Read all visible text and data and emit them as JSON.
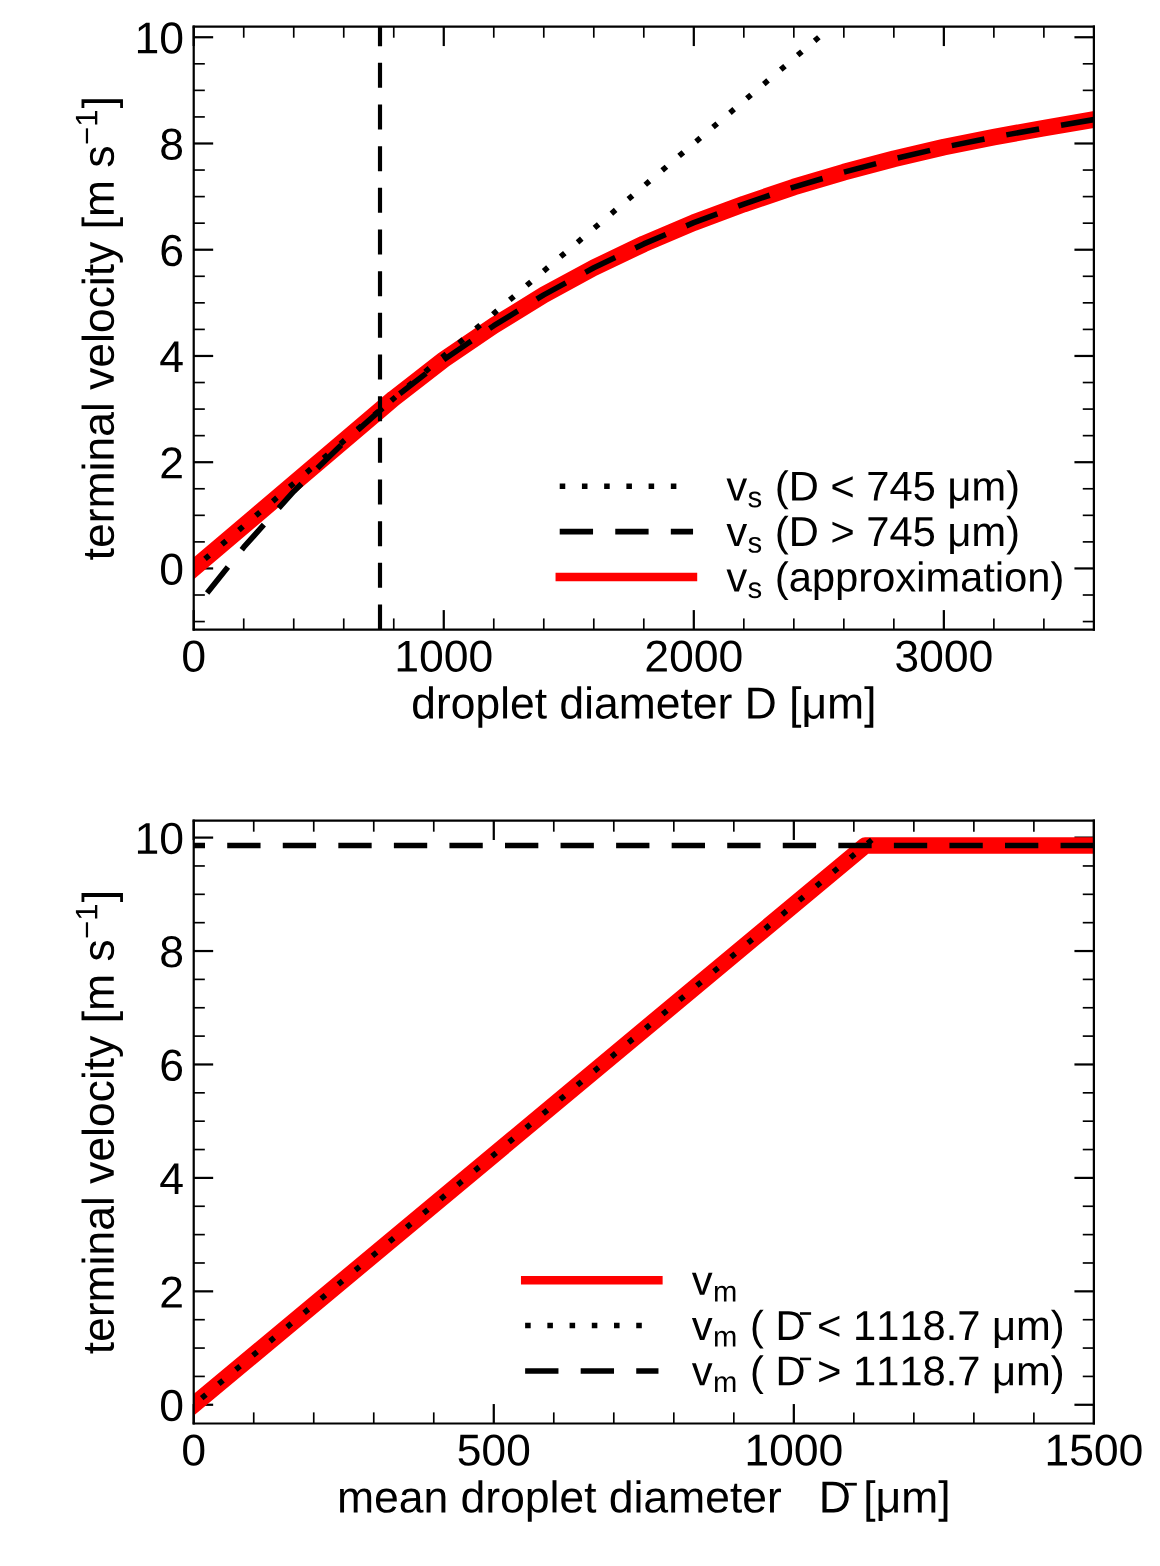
{
  "chart_data": [
    {
      "type": "line",
      "xlabel": "droplet diameter D [μm]",
      "ylabel": "terminal velocity [m s$^{−1}$]",
      "xlim": [
        0,
        3600
      ],
      "xticks": [
        0,
        1000,
        2000,
        3000
      ],
      "ylim": [
        -1.15,
        10.2
      ],
      "yticks": [
        0,
        2,
        4,
        6,
        8,
        10
      ],
      "grid": false,
      "legend": "bottom right",
      "ref_lines": [
        {
          "axis": "x",
          "value": 745,
          "color": "#000000",
          "line_style": "dashed"
        }
      ],
      "series": [
        {
          "name": "v$_{s}$ (D < 745 μm)",
          "color": "#000000",
          "line_style": "dotted",
          "x": [
            0,
            2500
          ],
          "values": [
            0,
            10
          ]
        },
        {
          "name": "v$_{s}$ (D > 745 μm)",
          "color": "#000000",
          "line_style": "dashed",
          "x": [
            0,
            200,
            400,
            600,
            800,
            1000,
            1200,
            1400,
            1600,
            1800,
            2000,
            2200,
            2400,
            2600,
            2800,
            3000,
            3200,
            3400,
            3600
          ],
          "values": [
            -0.78,
            0.4,
            1.45,
            2.37,
            3.2,
            3.93,
            4.57,
            5.15,
            5.66,
            6.11,
            6.51,
            6.86,
            7.18,
            7.46,
            7.71,
            7.93,
            8.12,
            8.29,
            8.45
          ]
        },
        {
          "name": "v$_{s}$ (approximation)",
          "color": "#ff0000",
          "line_style": "solid",
          "x": [
            0,
            745,
            800,
            1000,
            1200,
            1400,
            1600,
            1800,
            2000,
            2200,
            2400,
            2600,
            2800,
            3000,
            3200,
            3400,
            3600
          ],
          "values": [
            0,
            2.98,
            3.2,
            3.93,
            4.57,
            5.15,
            5.66,
            6.11,
            6.51,
            6.86,
            7.18,
            7.46,
            7.71,
            7.93,
            8.12,
            8.29,
            8.45
          ]
        }
      ]
    },
    {
      "type": "line",
      "xlabel": "mean droplet diameter   D̄ [μm]",
      "ylabel": "terminal velocity [m s$^{−1}$]",
      "xlim": [
        0,
        1500
      ],
      "xticks": [
        0,
        500,
        1000,
        1500
      ],
      "ylim": [
        -0.33,
        10.3
      ],
      "yticks": [
        0,
        2,
        4,
        6,
        8,
        10
      ],
      "grid": false,
      "legend": "bottom right",
      "series": [
        {
          "name": "v$_{m}$",
          "color": "#ff0000",
          "line_style": "solid",
          "x": [
            0,
            1118.7,
            1500
          ],
          "values": [
            0,
            9.86,
            9.86
          ]
        },
        {
          "name": "v$_{m}$ ( D̄ < 1118.7 μm)",
          "color": "#000000",
          "line_style": "dotted",
          "x": [
            0,
            1130
          ],
          "values": [
            0,
            9.96
          ]
        },
        {
          "name": "v$_{m}$ ( D̄ > 1118.7 μm)",
          "color": "#000000",
          "line_style": "dashed",
          "x": [
            0,
            1500
          ],
          "values": [
            9.86,
            9.86
          ]
        }
      ]
    }
  ]
}
